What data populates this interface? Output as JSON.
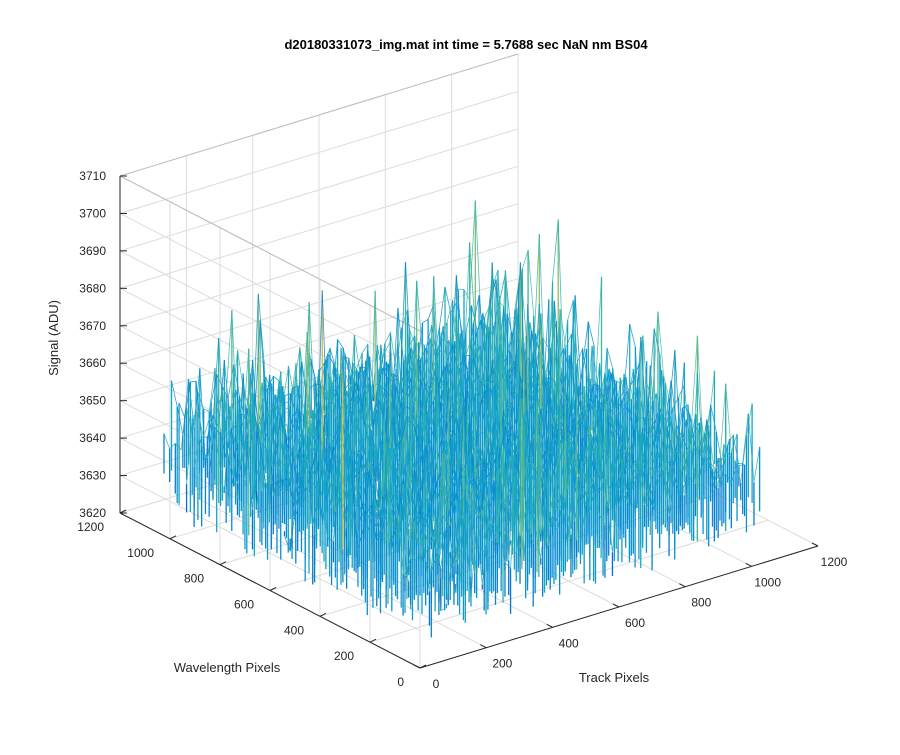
{
  "colors": {
    "background": "#ffffff",
    "axis": "#262626",
    "grid": "#dcdcdc",
    "low": "#0072bd",
    "mid": "#1aa7c4",
    "high": "#edb120"
  },
  "chart_data": {
    "type": "surface3d",
    "title": "d20180331073_img.mat int time = 5.7688 sec  NaN nm BS04",
    "xlabel": "Track Pixels",
    "ylabel": "Wavelength Pixels",
    "zlabel": "Signal (ADU)",
    "xlim": [
      0,
      1200
    ],
    "ylim": [
      0,
      1200
    ],
    "zlim": [
      3620,
      3710
    ],
    "xticks": [
      "0",
      "200",
      "400",
      "600",
      "800",
      "1000",
      "1200"
    ],
    "yticks": [
      "0",
      "200",
      "400",
      "600",
      "800",
      "1000",
      "1200"
    ],
    "zticks": [
      "3620",
      "3630",
      "3640",
      "3650",
      "3660",
      "3670",
      "3680",
      "3690",
      "3700",
      "3710"
    ],
    "data_extent": {
      "x": [
        0,
        1024
      ],
      "y": [
        0,
        1024
      ]
    },
    "signal_stats": {
      "mean": 3650,
      "min": 3626,
      "max": 3698
    },
    "colormap": "parula",
    "grid": true,
    "view": {
      "azimuth": -37.5,
      "elevation": 30
    }
  }
}
